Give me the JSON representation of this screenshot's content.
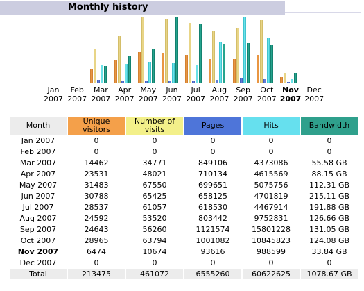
{
  "title": "Monthly history",
  "months": [
    {
      "line1": "Jan",
      "line2": "2007",
      "current": false
    },
    {
      "line1": "Feb",
      "line2": "2007",
      "current": false
    },
    {
      "line1": "Mar",
      "line2": "2007",
      "current": false
    },
    {
      "line1": "Apr",
      "line2": "2007",
      "current": false
    },
    {
      "line1": "May",
      "line2": "2007",
      "current": false
    },
    {
      "line1": "Jun",
      "line2": "2007",
      "current": false
    },
    {
      "line1": "Jul",
      "line2": "2007",
      "current": false
    },
    {
      "line1": "Aug",
      "line2": "2007",
      "current": false
    },
    {
      "line1": "Sep",
      "line2": "2007",
      "current": false
    },
    {
      "line1": "Oct",
      "line2": "2007",
      "current": false
    },
    {
      "line1": "Nov",
      "line2": "2007",
      "current": true
    },
    {
      "line1": "Dec",
      "line2": "2007",
      "current": false
    }
  ],
  "colors": {
    "unique_visitors": "#f4a04a",
    "visits": "#f3f08a",
    "pages": "#4e75d9",
    "hits": "#66e0ee",
    "bandwidth": "#2fa08c"
  },
  "table": {
    "headers": {
      "month": "Month",
      "unique_visitors": "Unique visitors",
      "visits": "Number of visits",
      "pages": "Pages",
      "hits": "Hits",
      "bandwidth": "Bandwidth"
    },
    "rows": [
      {
        "month": "Jan 2007",
        "uv": "0",
        "nv": "0",
        "pg": "0",
        "ht": "0",
        "bw": "0",
        "current": false
      },
      {
        "month": "Feb 2007",
        "uv": "0",
        "nv": "0",
        "pg": "0",
        "ht": "0",
        "bw": "0",
        "current": false
      },
      {
        "month": "Mar 2007",
        "uv": "14462",
        "nv": "34771",
        "pg": "849106",
        "ht": "4373086",
        "bw": "55.58 GB",
        "current": false
      },
      {
        "month": "Apr 2007",
        "uv": "23531",
        "nv": "48021",
        "pg": "710134",
        "ht": "4615569",
        "bw": "88.15 GB",
        "current": false
      },
      {
        "month": "May 2007",
        "uv": "31483",
        "nv": "67550",
        "pg": "699651",
        "ht": "5075756",
        "bw": "112.31 GB",
        "current": false
      },
      {
        "month": "Jun 2007",
        "uv": "30788",
        "nv": "65425",
        "pg": "658125",
        "ht": "4701819",
        "bw": "215.11 GB",
        "current": false
      },
      {
        "month": "Jul 2007",
        "uv": "28537",
        "nv": "61057",
        "pg": "618530",
        "ht": "4467914",
        "bw": "191.88 GB",
        "current": false
      },
      {
        "month": "Aug 2007",
        "uv": "24592",
        "nv": "53520",
        "pg": "803442",
        "ht": "9752831",
        "bw": "126.66 GB",
        "current": false
      },
      {
        "month": "Sep 2007",
        "uv": "24643",
        "nv": "56260",
        "pg": "1121574",
        "ht": "15801228",
        "bw": "131.05 GB",
        "current": false
      },
      {
        "month": "Oct 2007",
        "uv": "28965",
        "nv": "63794",
        "pg": "1001082",
        "ht": "10845823",
        "bw": "124.08 GB",
        "current": false
      },
      {
        "month": "Nov 2007",
        "uv": "6474",
        "nv": "10674",
        "pg": "93616",
        "ht": "988599",
        "bw": "33.84 GB",
        "current": true
      },
      {
        "month": "Dec 2007",
        "uv": "0",
        "nv": "0",
        "pg": "0",
        "ht": "0",
        "bw": "0",
        "current": false
      }
    ],
    "total": {
      "month": "Total",
      "uv": "213475",
      "nv": "461072",
      "pg": "6555260",
      "ht": "60622625",
      "bw": "1078.67 GB"
    }
  },
  "chart_data": {
    "type": "bar",
    "categories": [
      "Jan 2007",
      "Feb 2007",
      "Mar 2007",
      "Apr 2007",
      "May 2007",
      "Jun 2007",
      "Jul 2007",
      "Aug 2007",
      "Sep 2007",
      "Oct 2007",
      "Nov 2007",
      "Dec 2007"
    ],
    "series": [
      {
        "name": "Unique visitors",
        "values": [
          0,
          0,
          14462,
          23531,
          31483,
          30788,
          28537,
          24592,
          24643,
          28965,
          6474,
          0
        ]
      },
      {
        "name": "Number of visits",
        "values": [
          0,
          0,
          34771,
          48021,
          67550,
          65425,
          61057,
          53520,
          56260,
          63794,
          10674,
          0
        ]
      },
      {
        "name": "Pages",
        "values": [
          0,
          0,
          849106,
          710134,
          699651,
          658125,
          618530,
          803442,
          1121574,
          1001082,
          93616,
          0
        ]
      },
      {
        "name": "Hits",
        "values": [
          0,
          0,
          4373086,
          4615569,
          5075756,
          4701819,
          4467914,
          9752831,
          15801228,
          10845823,
          988599,
          0
        ]
      },
      {
        "name": "Bandwidth",
        "values": [
          0,
          0,
          55.58,
          88.15,
          112.31,
          215.11,
          191.88,
          126.66,
          131.05,
          124.08,
          33.84,
          0
        ]
      }
    ]
  }
}
